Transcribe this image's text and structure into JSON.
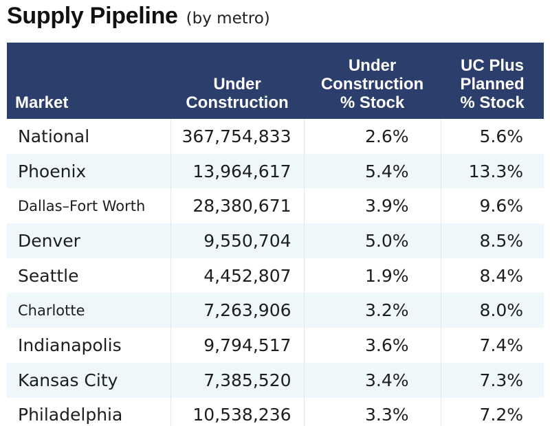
{
  "title": "Supply Pipeline",
  "subtitle": "(by metro)",
  "chart_data": {
    "type": "table",
    "columns": [
      [
        "Market"
      ],
      [
        "Under",
        "Construction"
      ],
      [
        "Under",
        "Construction",
        "% Stock"
      ],
      [
        "UC Plus",
        "Planned",
        "% Stock"
      ]
    ],
    "rows": [
      {
        "market": "National",
        "under_construction": "367,754,833",
        "uc_pct_stock": "2.6%",
        "uc_plus_planned_pct_stock": "5.6%"
      },
      {
        "market": "Phoenix",
        "under_construction": "13,964,617",
        "uc_pct_stock": "5.4%",
        "uc_plus_planned_pct_stock": "13.3%"
      },
      {
        "market": "Dallas–Fort Worth",
        "under_construction": "28,380,671",
        "uc_pct_stock": "3.9%",
        "uc_plus_planned_pct_stock": "9.6%"
      },
      {
        "market": "Denver",
        "under_construction": "9,550,704",
        "uc_pct_stock": "5.0%",
        "uc_plus_planned_pct_stock": "8.5%"
      },
      {
        "market": "Seattle",
        "under_construction": "4,452,807",
        "uc_pct_stock": "1.9%",
        "uc_plus_planned_pct_stock": "8.4%"
      },
      {
        "market": "Charlotte",
        "under_construction": "7,263,906",
        "uc_pct_stock": "3.2%",
        "uc_plus_planned_pct_stock": "8.0%"
      },
      {
        "market": "Indianapolis",
        "under_construction": "9,794,517",
        "uc_pct_stock": "3.6%",
        "uc_plus_planned_pct_stock": "7.4%"
      },
      {
        "market": "Kansas City",
        "under_construction": "7,385,520",
        "uc_pct_stock": "3.4%",
        "uc_plus_planned_pct_stock": "7.3%"
      },
      {
        "market": "Philadelphia",
        "under_construction": "10,538,236",
        "uc_pct_stock": "3.3%",
        "uc_plus_planned_pct_stock": "7.2%"
      }
    ]
  },
  "colors": {
    "header_bg": "#2c3e6b",
    "header_text": "#ffffff",
    "stripe": "#eef8fb"
  }
}
